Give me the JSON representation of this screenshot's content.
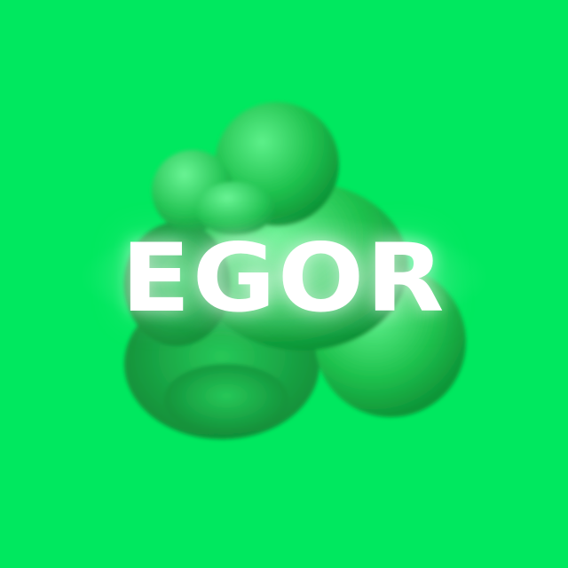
{
  "brand": {
    "name": "EGOR"
  },
  "colors": {
    "background": "#00e85f",
    "blob_highlight": "#5df08a",
    "blob_mid": "#1fc24e",
    "blob_shadow": "#0a8a32",
    "text": "#ffffff"
  },
  "icons": {
    "blob": "green-3d-blob-cluster"
  }
}
